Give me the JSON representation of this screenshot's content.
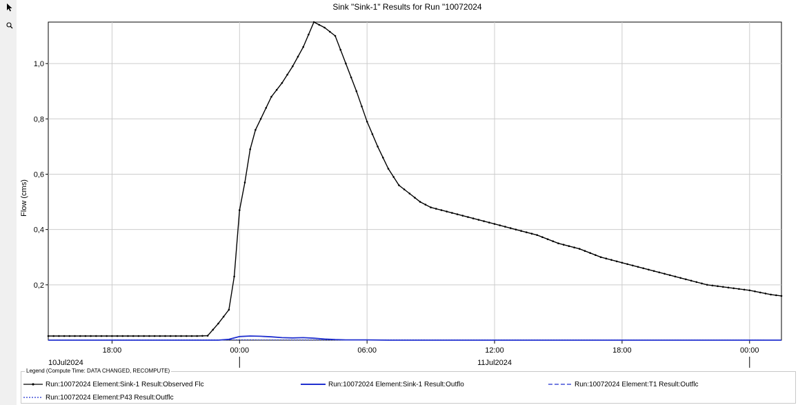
{
  "toolbar": {
    "select_icon": "cursor-arrow-icon",
    "zoom_icon": "magnifier-icon"
  },
  "chart_data": {
    "type": "line",
    "title": "Sink \"Sink-1\" Results for Run \"10072024",
    "ylabel": "Flow (cms)",
    "xlabel": "",
    "x_ticks": [
      "18:00",
      "00:00",
      "06:00",
      "12:00",
      "18:00",
      "00:00"
    ],
    "date_labels": [
      "10Jul2024",
      "11Jul2024"
    ],
    "y_ticks": [
      "0,2",
      "0,4",
      "0,6",
      "0,8",
      "1,0"
    ],
    "ylim": [
      0,
      1.15
    ],
    "xlim": [
      "2024-07-10 15:00",
      "2024-07-12 01:00"
    ],
    "x_unit": "hours relative to 2024-07-10 00:00",
    "grid": true,
    "legend_placement": "bottom",
    "series": [
      {
        "name": "Run:10072024 Element:Sink-1 Result:Observed Flc",
        "color": "#000000",
        "style": "solid-markers",
        "x": [
          15,
          16,
          17,
          18,
          19,
          20,
          21,
          22,
          22.5,
          23,
          23.5,
          23.75,
          24,
          24.25,
          24.5,
          24.75,
          25,
          25.5,
          26,
          26.5,
          27,
          27.5,
          28,
          28.5,
          29,
          29.5,
          30,
          30.5,
          31,
          31.5,
          32,
          32.5,
          33,
          33.5,
          34,
          35,
          36,
          37,
          38,
          39,
          40,
          41,
          42,
          43,
          44,
          45,
          46,
          47,
          48,
          49,
          49.5
        ],
        "values": [
          0.015,
          0.015,
          0.015,
          0.015,
          0.015,
          0.015,
          0.015,
          0.015,
          0.016,
          0.06,
          0.11,
          0.23,
          0.47,
          0.57,
          0.69,
          0.76,
          0.8,
          0.88,
          0.93,
          0.99,
          1.06,
          1.15,
          1.13,
          1.1,
          1.0,
          0.9,
          0.79,
          0.7,
          0.62,
          0.56,
          0.53,
          0.5,
          0.48,
          0.47,
          0.46,
          0.44,
          0.42,
          0.4,
          0.38,
          0.35,
          0.33,
          0.3,
          0.28,
          0.26,
          0.24,
          0.22,
          0.2,
          0.19,
          0.18,
          0.165,
          0.16
        ]
      },
      {
        "name": "Run:10072024 Element:Sink-1 Result:Outflo",
        "color": "#1f2fcf",
        "style": "solid",
        "x": [
          15,
          23,
          23.5,
          24,
          24.5,
          25,
          25.5,
          26,
          26.5,
          27,
          27.5,
          28,
          28.5,
          29,
          30,
          31,
          49.5
        ],
        "values": [
          0,
          0,
          0.003,
          0.013,
          0.015,
          0.014,
          0.012,
          0.009,
          0.008,
          0.009,
          0.007,
          0.004,
          0.002,
          0.001,
          0.001,
          0,
          0
        ]
      },
      {
        "name": "Run:10072024 Element:T1 Result:Outflc",
        "color": "#1f2fcf",
        "style": "dashed",
        "x": [
          15,
          23,
          23.5,
          24,
          24.5,
          25,
          25.5,
          26,
          26.5,
          27,
          27.5,
          28,
          28.5,
          29,
          30,
          31,
          49.5
        ],
        "values": [
          0,
          0,
          0.003,
          0.013,
          0.015,
          0.014,
          0.012,
          0.009,
          0.008,
          0.009,
          0.007,
          0.004,
          0.002,
          0.001,
          0.001,
          0,
          0
        ]
      },
      {
        "name": "Run:10072024 Element:P43 Result:Outflc",
        "color": "#1f2fcf",
        "style": "dotted",
        "x": [
          15,
          24,
          49.5
        ],
        "values": [
          0,
          0.001,
          0
        ]
      }
    ]
  },
  "legend": {
    "title": "Legend (Compute Time: DATA CHANGED, RECOMPUTE)"
  }
}
